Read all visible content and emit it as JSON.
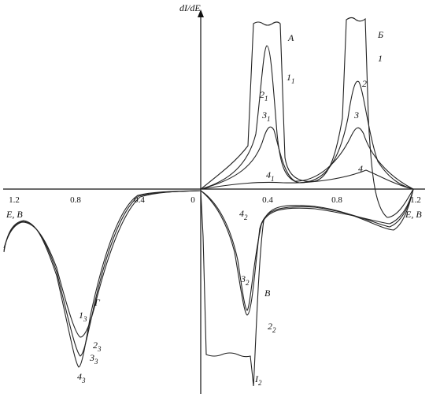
{
  "axis": {
    "y_label": "dI/dE",
    "x_label_right": "E, В",
    "x_label_left": "E, В",
    "x_ticks": [
      "1.2",
      "0.8",
      "0.4",
      "0",
      "0.4",
      "0.8",
      "1.2"
    ]
  },
  "curve_labels": [
    {
      "main": "А"
    },
    {
      "main": "Б"
    },
    {
      "main": "1"
    },
    {
      "main": "1",
      "sub": "1"
    },
    {
      "main": "2"
    },
    {
      "main": "2",
      "sub": "1"
    },
    {
      "main": "3"
    },
    {
      "main": "3",
      "sub": "1"
    },
    {
      "main": "4"
    },
    {
      "main": "4",
      "sub": "1"
    },
    {
      "main": "4",
      "sub": "2"
    },
    {
      "main": "3",
      "sub": "2"
    },
    {
      "main": "В"
    },
    {
      "main": "2",
      "sub": "2"
    },
    {
      "main": "I",
      "sub": "2"
    },
    {
      "main": "Г"
    },
    {
      "main": "1",
      "sub": "3"
    },
    {
      "main": "2",
      "sub": "3"
    },
    {
      "main": "3",
      "sub": "3"
    },
    {
      "main": "4",
      "sub": "3"
    }
  ]
}
